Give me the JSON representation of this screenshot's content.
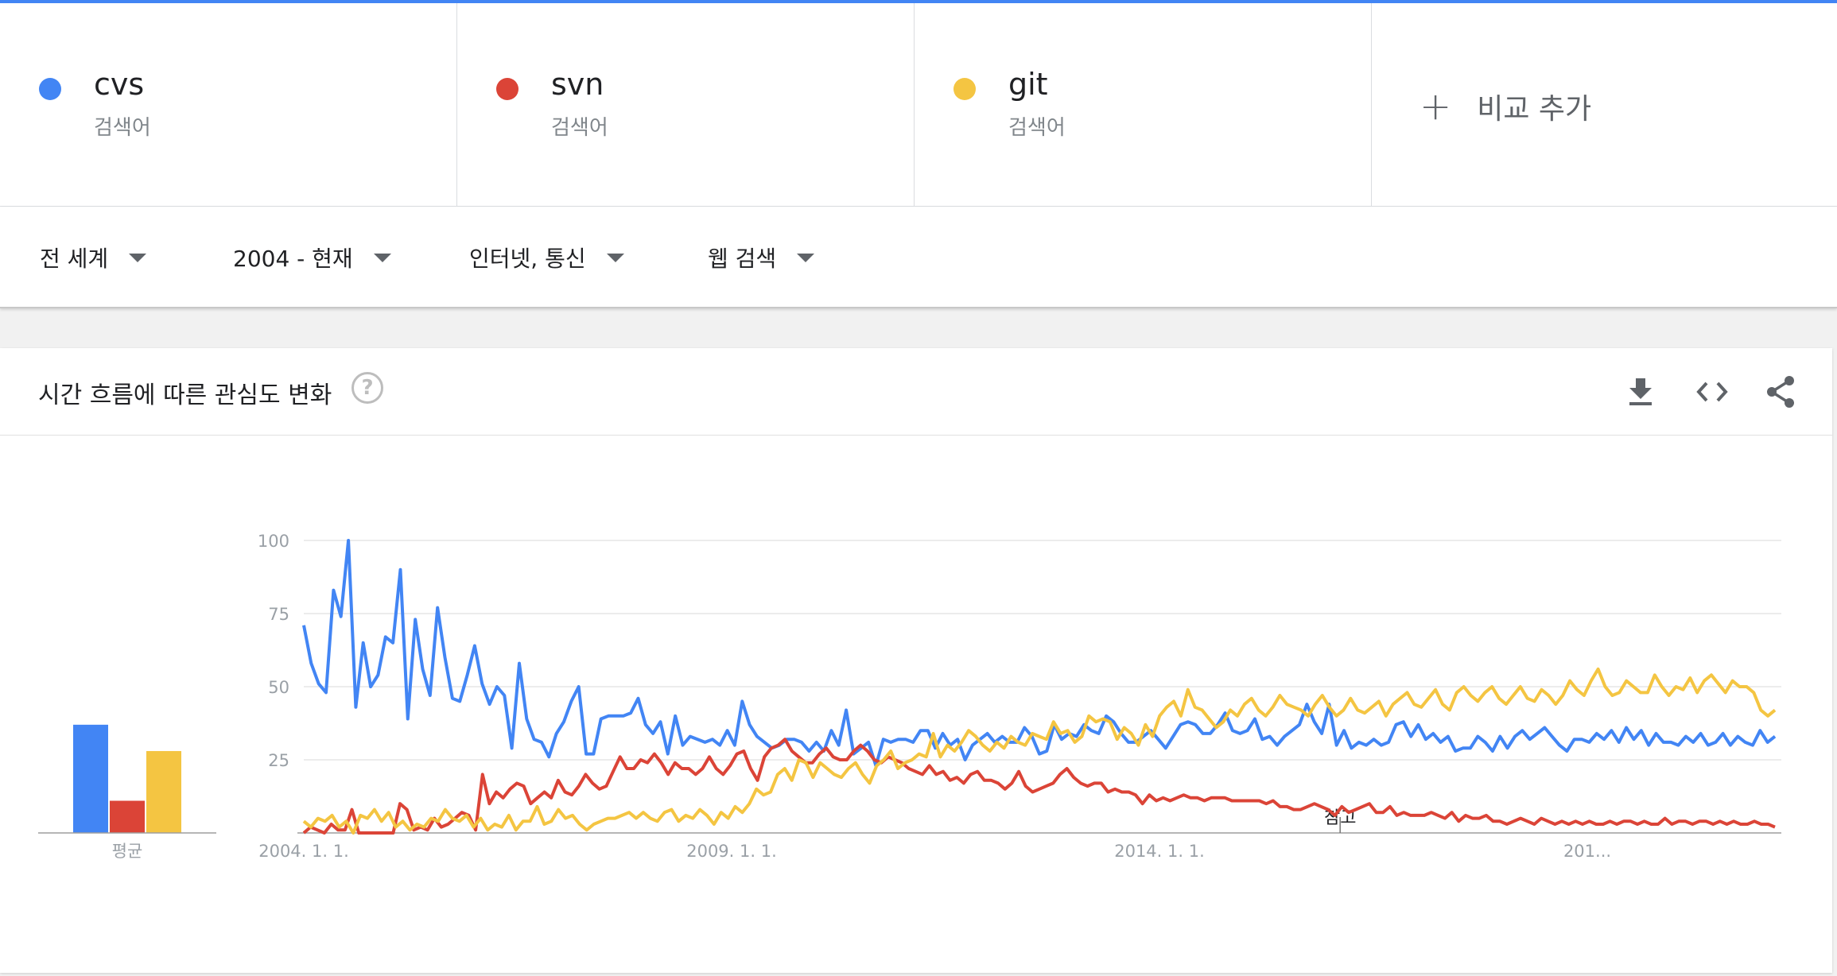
{
  "terms": [
    {
      "name": "cvs",
      "type": "검색어",
      "color": "#4285f4"
    },
    {
      "name": "svn",
      "type": "검색어",
      "color": "#db4437"
    },
    {
      "name": "git",
      "type": "검색어",
      "color": "#f4c542"
    }
  ],
  "add_compare": "비교 추가",
  "filters": {
    "region": "전 세계",
    "time": "2004 - 현재",
    "category": "인터넷, 통신",
    "search_type": "웹 검색"
  },
  "card": {
    "title": "시간 흐름에 따른 관심도 변화",
    "help_icon": "help-circle-icon",
    "download_icon": "download-icon",
    "embed_icon": "code-icon",
    "share_icon": "share-icon"
  },
  "chart_data": {
    "type": "line",
    "title": "",
    "xlabel": "",
    "ylabel": "",
    "ylim": [
      0,
      100
    ],
    "yticks": [
      25,
      50,
      75,
      100
    ],
    "xticks": [
      {
        "year": 2004,
        "label": "2004. 1. 1."
      },
      {
        "year": 2009,
        "label": "2009. 1. 1."
      },
      {
        "year": 2014,
        "label": "2014. 1. 1."
      },
      {
        "year": 2019,
        "label": "201..."
      }
    ],
    "x_start": "2004-01",
    "x_step_months": 1,
    "annotation": {
      "label": "참고",
      "year": 2016.0
    },
    "average": {
      "label": "평균",
      "values": [
        37,
        11,
        28
      ]
    },
    "grid": true,
    "series": [
      {
        "name": "cvs",
        "color": "#4285f4",
        "values": [
          71,
          58,
          51,
          48,
          83,
          74,
          100,
          43,
          65,
          50,
          54,
          67,
          65,
          90,
          39,
          73,
          56,
          47,
          77,
          60,
          46,
          45,
          54,
          64,
          51,
          44,
          50,
          47,
          29,
          58,
          39,
          32,
          31,
          26,
          34,
          38,
          45,
          50,
          27,
          27,
          39,
          40,
          40,
          40,
          41,
          46,
          37,
          34,
          38,
          27,
          40,
          30,
          33,
          32,
          31,
          32,
          30,
          35,
          30,
          45,
          37,
          33,
          31,
          29,
          30,
          32,
          32,
          31,
          28,
          31,
          28,
          35,
          30,
          42,
          27,
          29,
          31,
          23,
          32,
          31,
          32,
          32,
          31,
          35,
          35,
          29,
          34,
          30,
          32,
          25,
          30,
          32,
          34,
          31,
          33,
          31,
          31,
          36,
          33,
          27,
          28,
          37,
          32,
          34,
          33,
          37,
          35,
          34,
          40,
          38,
          34,
          31,
          31,
          33,
          35,
          32,
          29,
          33,
          37,
          38,
          37,
          34,
          34,
          37,
          41,
          35,
          34,
          35,
          39,
          32,
          33,
          30,
          33,
          35,
          37,
          44,
          38,
          34,
          44,
          30,
          35,
          29,
          31,
          30,
          32,
          30,
          31,
          37,
          38,
          33,
          37,
          32,
          34,
          31,
          33,
          28,
          29,
          29,
          33,
          31,
          28,
          33,
          29,
          33,
          35,
          32,
          34,
          36,
          33,
          30,
          28,
          32,
          32,
          31,
          34,
          32,
          35,
          31,
          36,
          32,
          35,
          30,
          34,
          31,
          31,
          30,
          33,
          31,
          34,
          30,
          31,
          34,
          30,
          33,
          31,
          30,
          35,
          31,
          33
        ]
      },
      {
        "name": "svn",
        "color": "#db4437",
        "values": [
          0,
          2,
          1,
          0,
          3,
          1,
          1,
          8,
          0,
          0,
          0,
          0,
          0,
          0,
          10,
          8,
          1,
          2,
          1,
          5,
          2,
          3,
          5,
          7,
          6,
          1,
          20,
          10,
          14,
          12,
          15,
          17,
          16,
          10,
          12,
          14,
          12,
          18,
          14,
          13,
          16,
          20,
          17,
          15,
          16,
          21,
          26,
          22,
          22,
          25,
          24,
          27,
          24,
          20,
          24,
          22,
          22,
          20,
          22,
          26,
          22,
          20,
          23,
          27,
          28,
          22,
          18,
          26,
          29,
          30,
          32,
          28,
          26,
          24,
          24,
          27,
          29,
          26,
          25,
          25,
          28,
          30,
          28,
          25,
          24,
          26,
          25,
          24,
          22,
          21,
          20,
          23,
          20,
          21,
          18,
          19,
          17,
          20,
          21,
          18,
          18,
          17,
          15,
          17,
          21,
          16,
          14,
          15,
          16,
          17,
          20,
          22,
          19,
          17,
          16,
          17,
          17,
          14,
          15,
          14,
          14,
          13,
          10,
          13,
          11,
          12,
          11,
          12,
          13,
          12,
          12,
          11,
          12,
          12,
          12,
          11,
          11,
          11,
          11,
          11,
          10,
          11,
          9,
          9,
          8,
          8,
          9,
          10,
          9,
          8,
          6,
          9,
          7,
          8,
          9,
          10,
          7,
          7,
          9,
          6,
          7,
          6,
          6,
          6,
          7,
          6,
          5,
          7,
          4,
          6,
          5,
          5,
          6,
          4,
          4,
          3,
          4,
          5,
          4,
          3,
          5,
          4,
          3,
          4,
          3,
          4,
          3,
          4,
          3,
          3,
          4,
          3,
          4,
          4,
          3,
          4,
          3,
          3,
          5,
          3,
          4,
          4,
          3,
          4,
          4,
          3,
          4,
          3,
          4,
          3,
          3,
          4,
          3,
          3,
          2
        ]
      },
      {
        "name": "git",
        "color": "#f4c542",
        "values": [
          4,
          2,
          5,
          4,
          6,
          2,
          4,
          0,
          6,
          5,
          8,
          4,
          7,
          2,
          4,
          1,
          3,
          2,
          5,
          4,
          8,
          5,
          4,
          6,
          2,
          5,
          1,
          3,
          2,
          6,
          1,
          4,
          4,
          9,
          3,
          4,
          8,
          5,
          6,
          3,
          1,
          3,
          4,
          5,
          5,
          6,
          7,
          5,
          7,
          5,
          4,
          7,
          8,
          4,
          6,
          5,
          8,
          6,
          3,
          7,
          5,
          9,
          7,
          10,
          15,
          13,
          14,
          20,
          22,
          18,
          25,
          24,
          19,
          24,
          22,
          20,
          19,
          22,
          24,
          20,
          17,
          23,
          25,
          28,
          22,
          24,
          25,
          27,
          26,
          34,
          26,
          30,
          28,
          31,
          35,
          33,
          30,
          28,
          31,
          29,
          33,
          31,
          30,
          34,
          33,
          32,
          38,
          34,
          35,
          31,
          33,
          40,
          38,
          39,
          38,
          32,
          36,
          34,
          30,
          37,
          33,
          40,
          43,
          45,
          40,
          49,
          43,
          42,
          39,
          36,
          38,
          42,
          40,
          44,
          46,
          42,
          40,
          43,
          47,
          44,
          43,
          42,
          40,
          44,
          47,
          43,
          40,
          42,
          46,
          42,
          41,
          43,
          45,
          40,
          44,
          46,
          48,
          44,
          43,
          46,
          49,
          44,
          42,
          48,
          50,
          47,
          45,
          48,
          50,
          46,
          44,
          47,
          50,
          46,
          45,
          49,
          47,
          44,
          47,
          52,
          49,
          47,
          52,
          56,
          50,
          47,
          48,
          52,
          50,
          48,
          48,
          54,
          50,
          47,
          50,
          49,
          53,
          48,
          52,
          54,
          51,
          48,
          52,
          50,
          50,
          48,
          42,
          40,
          42
        ]
      }
    ]
  }
}
